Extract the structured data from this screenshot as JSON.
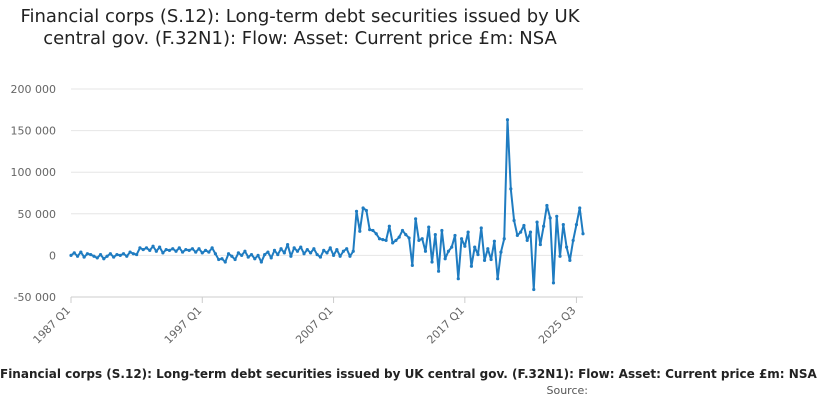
{
  "chart_data": {
    "type": "line",
    "title": "Financial corps (S.12): Long-term debt securities issued by UK central gov. (F.32N1): Flow: Asset: Current price £m: NSA",
    "xlabel": "",
    "ylabel": "",
    "ylim": [
      -50000,
      200000
    ],
    "yticks": [
      -50000,
      0,
      50000,
      100000,
      150000,
      200000
    ],
    "ytick_labels": [
      "-50 000",
      "0",
      "50 000",
      "100 000",
      "150 000",
      "200 000"
    ],
    "xtick_labels": [
      "1987 Q1",
      "1997 Q1",
      "2007 Q1",
      "2017 Q1",
      "2025 Q3"
    ],
    "xtick_index": [
      0,
      40,
      80,
      120,
      154
    ],
    "grid": "horizontal",
    "legend_position": "bottom",
    "series": [
      {
        "name": "Financial corps (S.12): Long-term debt securities issued by UK central gov. (F.32N1): Flow: Asset: Current price £m: NSA",
        "color": "#1f7cc1",
        "values": [
          0,
          3000,
          -1000,
          4000,
          -2000,
          2000,
          1000,
          -1000,
          -3000,
          1000,
          -4000,
          -1000,
          2000,
          -2000,
          1000,
          0,
          2000,
          -1000,
          4000,
          2000,
          1000,
          9000,
          7000,
          9000,
          6000,
          11000,
          5000,
          10000,
          3000,
          7000,
          6000,
          8000,
          5000,
          9000,
          4000,
          7000,
          6000,
          8000,
          4000,
          8000,
          3000,
          6000,
          4000,
          9000,
          2000,
          -5000,
          -4000,
          -8000,
          2000,
          -1000,
          -5000,
          3000,
          0,
          5000,
          -2000,
          1000,
          -4000,
          0,
          -8000,
          1000,
          4000,
          -3000,
          6000,
          1000,
          8000,
          3000,
          13000,
          -1000,
          9000,
          5000,
          10000,
          2000,
          7000,
          3000,
          8000,
          1000,
          -2000,
          6000,
          3000,
          9000,
          0,
          7000,
          -1000,
          5000,
          8000,
          -1000,
          5000,
          53000,
          29000,
          57000,
          54000,
          31000,
          30000,
          26000,
          20000,
          19000,
          18000,
          35000,
          15000,
          18000,
          22000,
          30000,
          25000,
          21000,
          -12000,
          44000,
          18000,
          20000,
          5000,
          34000,
          -8000,
          25000,
          -19000,
          30000,
          -4000,
          5000,
          10000,
          24000,
          -28000,
          20000,
          11000,
          28000,
          -13000,
          10000,
          1000,
          33000,
          -6000,
          8000,
          -5000,
          17000,
          -28000,
          4000,
          20000,
          163000,
          80000,
          42000,
          24000,
          28000,
          36000,
          18000,
          28000,
          -41000,
          40000,
          13000,
          35000,
          60000,
          45000,
          -33000,
          47000,
          -1000,
          37000,
          10000,
          -6000,
          18000,
          37000,
          57000,
          26000
        ]
      }
    ]
  },
  "legend": {
    "text": "Financial corps (S.12): Long-term debt securities issued by UK central gov. (F.32N1): Flow: Asset: Current price £m: NSA"
  },
  "source": {
    "label": "Source:"
  }
}
